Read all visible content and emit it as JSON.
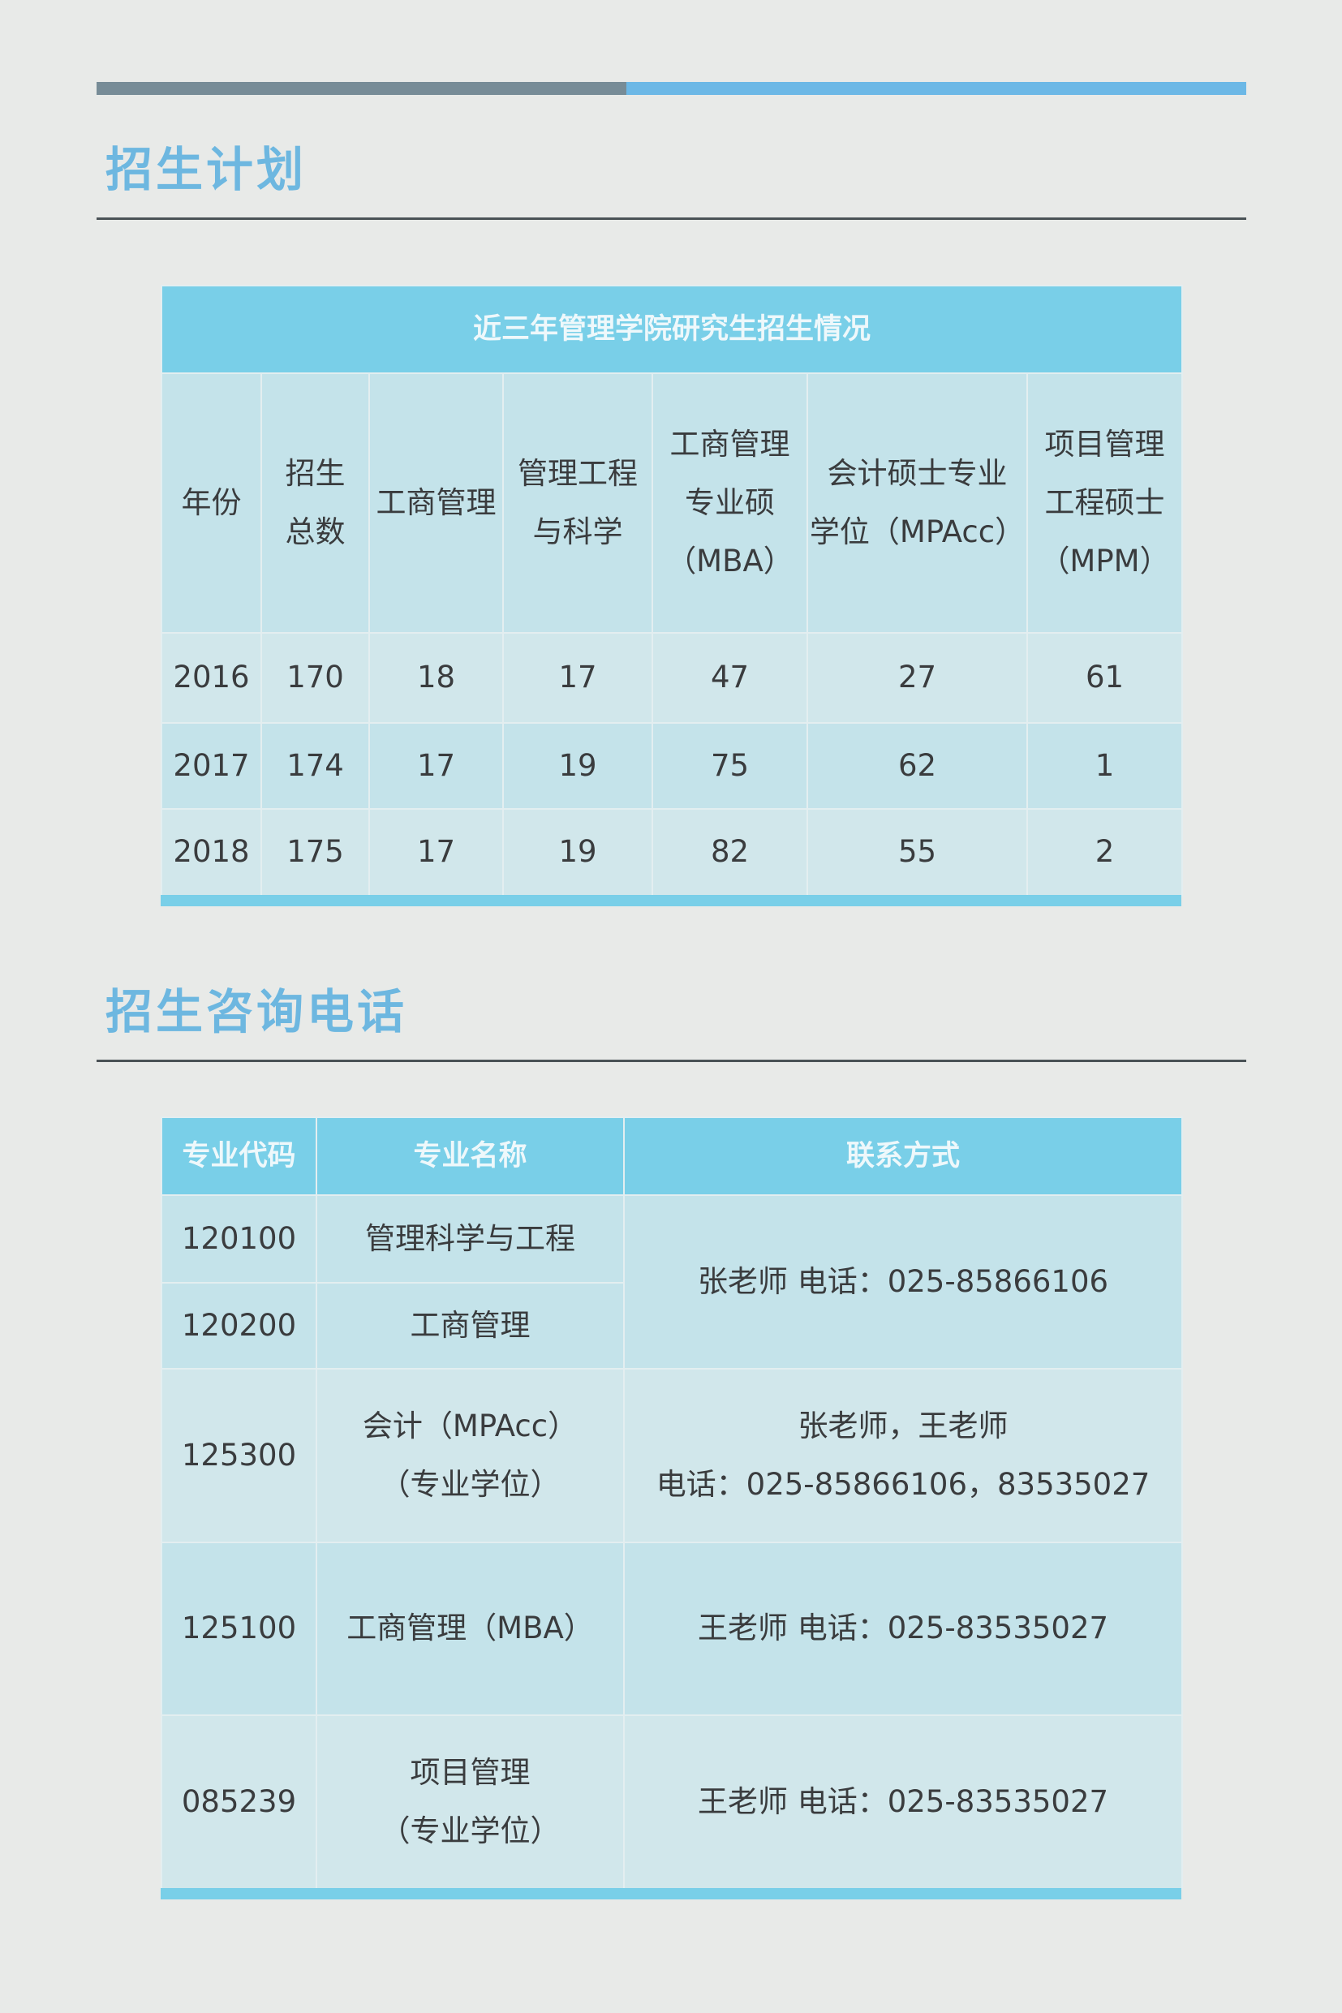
{
  "section1": {
    "title": "招生计划",
    "table_title": "近三年管理学院研究生招生情况",
    "headers": [
      [
        "年份"
      ],
      [
        "招生",
        "总数"
      ],
      [
        "工商管理"
      ],
      [
        "管理工程",
        "与科学"
      ],
      [
        "工商管理",
        "专业硕",
        "（MBA）"
      ],
      [
        "会计硕士专业",
        "学位（MPAcc）"
      ],
      [
        "项目管理",
        "工程硕士",
        "（MPM）"
      ]
    ],
    "rows": [
      [
        "2016",
        "170",
        "18",
        "17",
        "47",
        "27",
        "61"
      ],
      [
        "2017",
        "174",
        "17",
        "19",
        "75",
        "62",
        "1"
      ],
      [
        "2018",
        "175",
        "17",
        "19",
        "82",
        "55",
        "2"
      ]
    ]
  },
  "section2": {
    "title": "招生咨询电话",
    "headers": [
      "专业代码",
      "专业名称",
      "联系方式"
    ],
    "rows": [
      {
        "code": "120100",
        "name": [
          "管理科学与工程"
        ]
      },
      {
        "code": "120200",
        "name": [
          "工商管理"
        ]
      },
      {
        "code": "125300",
        "name": [
          "会计（MPAcc）",
          "（专业学位）"
        ]
      },
      {
        "code": "125100",
        "name": [
          "工商管理（MBA）"
        ]
      },
      {
        "code": "085239",
        "name": [
          "项目管理",
          "（专业学位）"
        ]
      }
    ],
    "contacts": [
      [
        "张老师 电话：025-85866106"
      ],
      [
        "张老师，王老师",
        "电话：025-85866106，83535027"
      ],
      [
        "王老师 电话：025-83535027"
      ],
      [
        "王老师 电话：025-83535027"
      ]
    ]
  },
  "colors": {
    "accent": "#6db7e0",
    "header": "#79cfe8",
    "row_a": "#c4e3ea",
    "row_b": "#d1e7eb",
    "bar_dark": "#778c97",
    "bar_light": "#6cb8e6"
  }
}
